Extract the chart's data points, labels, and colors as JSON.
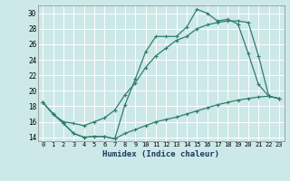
{
  "xlabel": "Humidex (Indice chaleur)",
  "bg_color": "#cde8e8",
  "line_color": "#2e7d6e",
  "grid_color": "#ffffff",
  "xlim": [
    -0.5,
    23.5
  ],
  "ylim": [
    13.5,
    31.0
  ],
  "xticks": [
    0,
    1,
    2,
    3,
    4,
    5,
    6,
    7,
    8,
    9,
    10,
    11,
    12,
    13,
    14,
    15,
    16,
    17,
    18,
    19,
    20,
    21,
    22,
    23
  ],
  "yticks": [
    14,
    16,
    18,
    20,
    22,
    24,
    26,
    28,
    30
  ],
  "line1_x": [
    0,
    1,
    2,
    3,
    4,
    5,
    6,
    7,
    8,
    9,
    10,
    11,
    12,
    13,
    14,
    15,
    16,
    17,
    18,
    19,
    20,
    21,
    22,
    23
  ],
  "line1_y": [
    18.5,
    17.0,
    15.8,
    14.5,
    14.0,
    14.1,
    14.1,
    13.8,
    18.2,
    21.5,
    25.0,
    27.0,
    27.0,
    27.0,
    28.2,
    30.5,
    30.0,
    29.0,
    29.2,
    28.6,
    24.8,
    20.8,
    19.3,
    19.0
  ],
  "line2_x": [
    0,
    1,
    2,
    3,
    4,
    5,
    6,
    7,
    8,
    9,
    10,
    11,
    12,
    13,
    14,
    15,
    16,
    17,
    18,
    19,
    20,
    21,
    22,
    23
  ],
  "line2_y": [
    18.5,
    17.0,
    15.8,
    14.5,
    14.0,
    14.1,
    14.1,
    13.8,
    14.5,
    15.0,
    15.5,
    16.0,
    16.3,
    16.6,
    17.0,
    17.4,
    17.8,
    18.2,
    18.5,
    18.8,
    19.0,
    19.2,
    19.3,
    19.0
  ],
  "line3_x": [
    0,
    1,
    2,
    3,
    4,
    5,
    6,
    7,
    8,
    9,
    10,
    11,
    12,
    13,
    14,
    15,
    16,
    17,
    18,
    19,
    20,
    21,
    22,
    23
  ],
  "line3_y": [
    18.5,
    17.0,
    16.0,
    15.8,
    15.5,
    16.0,
    16.5,
    17.5,
    19.5,
    21.0,
    23.0,
    24.5,
    25.5,
    26.5,
    27.0,
    28.0,
    28.5,
    28.8,
    29.0,
    29.0,
    28.8,
    24.5,
    19.3,
    19.0
  ]
}
